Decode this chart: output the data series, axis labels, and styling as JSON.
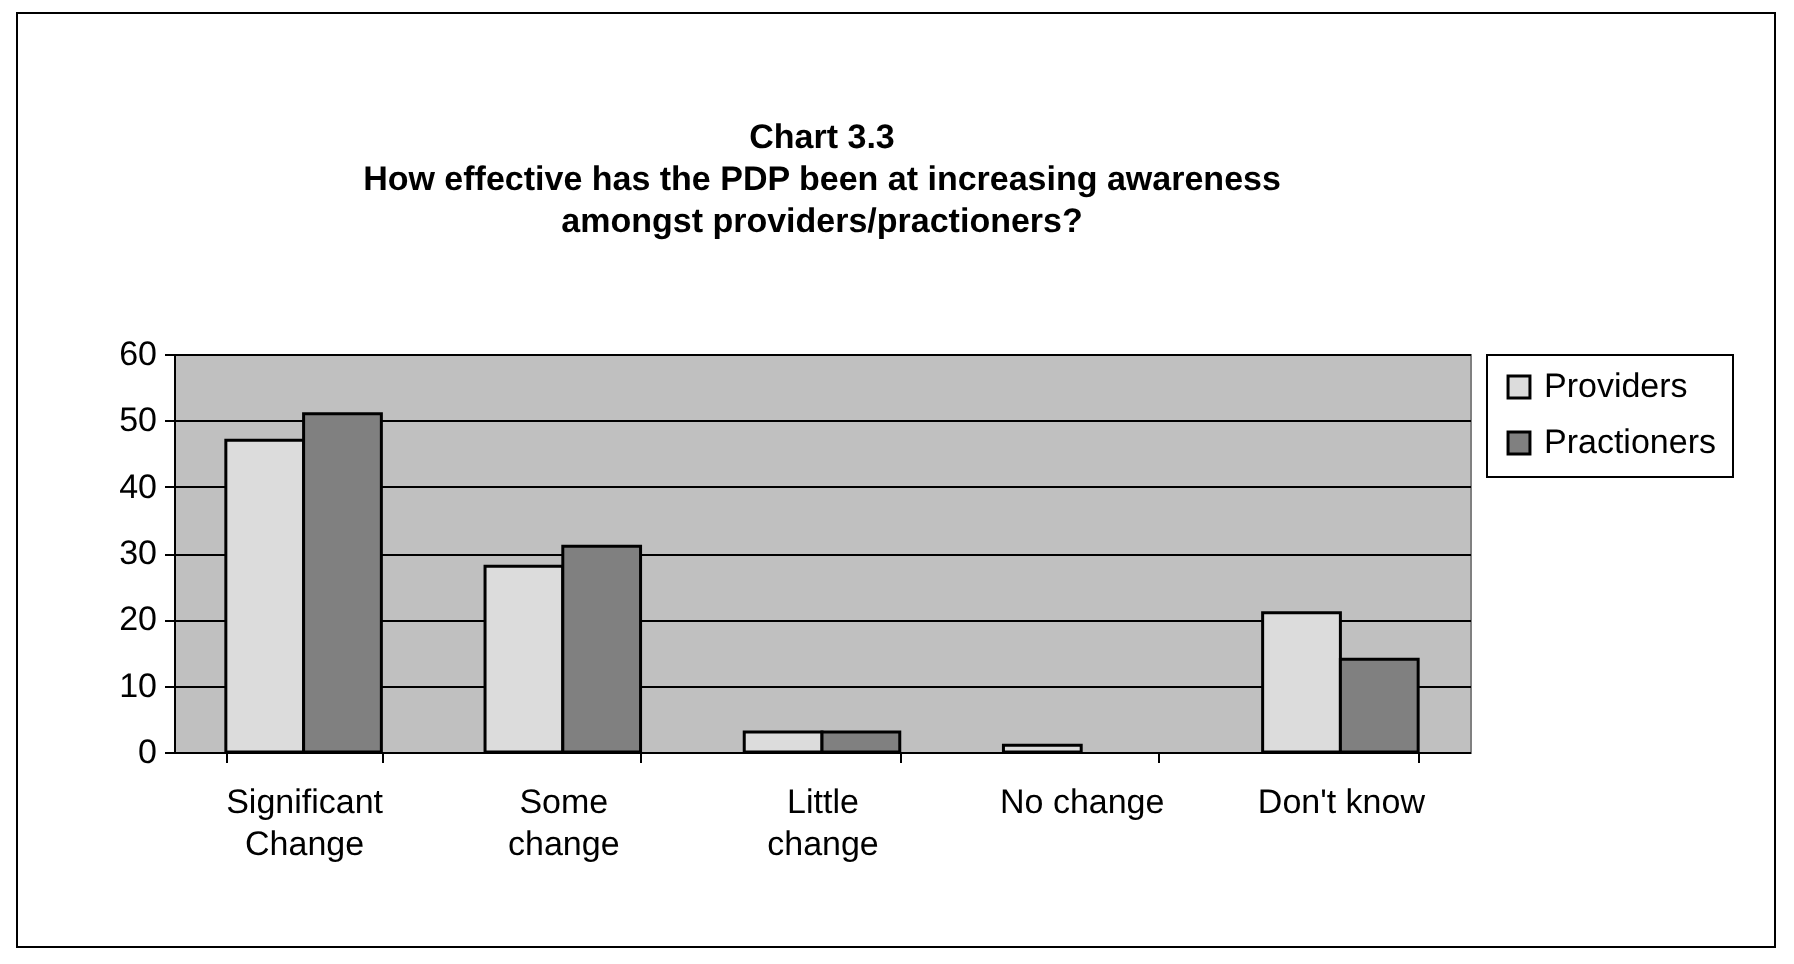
{
  "chart_data": {
    "type": "bar",
    "title": "Chart 3.3",
    "subtitle": "How effective has the PDP been at increasing awareness amongst providers/practioners?",
    "categories": [
      "Significant Change",
      "Some change",
      "Little change",
      "No change",
      "Don't know"
    ],
    "series": [
      {
        "name": "Providers",
        "color": "#dcdcdc",
        "values": [
          47,
          28,
          3,
          1,
          21
        ]
      },
      {
        "name": "Practioners",
        "color": "#808080",
        "values": [
          51,
          31,
          3,
          0,
          14
        ]
      }
    ],
    "ylim": [
      0,
      60
    ],
    "yticks": [
      0,
      10,
      20,
      30,
      40,
      50,
      60
    ],
    "grid": "y",
    "legend": "right"
  }
}
